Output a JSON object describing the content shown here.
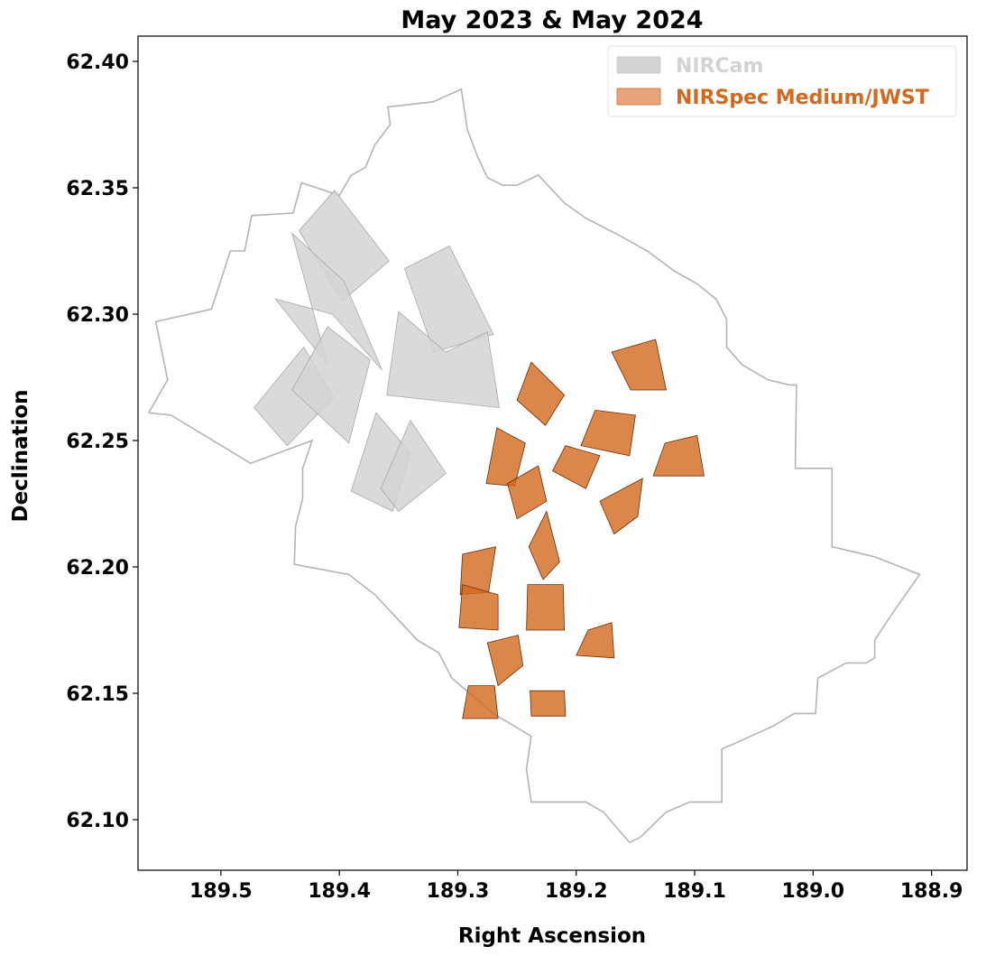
{
  "chart_data": {
    "type": "footprint-map",
    "title": "May 2023 &  May 2024",
    "xlabel": "Right Ascension",
    "ylabel": "Declination",
    "xlim": [
      189.57,
      188.87
    ],
    "ylim": [
      62.08,
      62.41
    ],
    "xaxis_inverted": true,
    "xticks": [
      189.5,
      189.4,
      189.3,
      189.2,
      189.1,
      189.0,
      188.9
    ],
    "xtick_labels": [
      "189.5",
      "189.4",
      "189.3",
      "189.2",
      "189.1",
      "189.0",
      "188.9"
    ],
    "yticks": [
      62.1,
      62.15,
      62.2,
      62.25,
      62.3,
      62.35,
      62.4
    ],
    "ytick_labels": [
      "62.10",
      "62.15",
      "62.20",
      "62.25",
      "62.30",
      "62.35",
      "62.40"
    ],
    "grid": false,
    "legend": {
      "placement": "top-right",
      "entries": [
        {
          "label": "NIRCam",
          "color": "#d3d3d3",
          "text_color": "#d3d3d3"
        },
        {
          "label": "NIRSpec Medium/JWST",
          "color": "#e8a57c",
          "text_color": "#d2691e"
        }
      ]
    },
    "colors": {
      "outline": "#b4b4b4",
      "nircam_fill": "#d3d3d3",
      "nircam_edge": "#a8a8a8",
      "nirspec_fill": "#d2691e",
      "nirspec_edge": "#6b2e05"
    },
    "outline": [
      [
        189.561,
        62.261
      ],
      [
        189.545,
        62.274
      ],
      [
        189.555,
        62.297
      ],
      [
        189.508,
        62.302
      ],
      [
        189.492,
        62.325
      ],
      [
        189.48,
        62.325
      ],
      [
        189.474,
        62.339
      ],
      [
        189.439,
        62.34
      ],
      [
        189.432,
        62.352
      ],
      [
        189.4,
        62.347
      ],
      [
        189.39,
        62.355
      ],
      [
        189.378,
        62.358
      ],
      [
        189.37,
        62.367
      ],
      [
        189.357,
        62.375
      ],
      [
        189.359,
        62.382
      ],
      [
        189.321,
        62.384
      ],
      [
        189.297,
        62.389
      ],
      [
        189.292,
        62.373
      ],
      [
        189.283,
        62.362
      ],
      [
        189.275,
        62.354
      ],
      [
        189.262,
        62.351
      ],
      [
        189.25,
        62.351
      ],
      [
        189.232,
        62.355
      ],
      [
        189.21,
        62.344
      ],
      [
        189.192,
        62.338
      ],
      [
        189.163,
        62.331
      ],
      [
        189.14,
        62.325
      ],
      [
        189.117,
        62.317
      ],
      [
        189.098,
        62.312
      ],
      [
        189.082,
        62.306
      ],
      [
        189.073,
        62.298
      ],
      [
        189.073,
        62.287
      ],
      [
        189.06,
        62.28
      ],
      [
        189.038,
        62.274
      ],
      [
        189.02,
        62.272
      ],
      [
        189.014,
        62.272
      ],
      [
        189.015,
        62.239
      ],
      [
        188.984,
        62.239
      ],
      [
        188.984,
        62.208
      ],
      [
        188.948,
        62.204
      ],
      [
        188.91,
        62.197
      ],
      [
        188.934,
        62.181
      ],
      [
        188.948,
        62.171
      ],
      [
        188.948,
        62.164
      ],
      [
        188.955,
        62.162
      ],
      [
        188.972,
        62.162
      ],
      [
        188.996,
        62.156
      ],
      [
        188.998,
        62.142
      ],
      [
        189.016,
        62.142
      ],
      [
        189.034,
        62.137
      ],
      [
        189.062,
        62.131
      ],
      [
        189.077,
        62.128
      ],
      [
        189.077,
        62.107
      ],
      [
        189.104,
        62.107
      ],
      [
        189.124,
        62.103
      ],
      [
        189.146,
        62.093
      ],
      [
        189.155,
        62.091
      ],
      [
        189.177,
        62.103
      ],
      [
        189.192,
        62.107
      ],
      [
        189.208,
        62.107
      ],
      [
        189.238,
        62.107
      ],
      [
        189.242,
        62.12
      ],
      [
        189.238,
        62.133
      ],
      [
        189.27,
        62.142
      ],
      [
        189.305,
        62.156
      ],
      [
        189.316,
        62.166
      ],
      [
        189.334,
        62.171
      ],
      [
        189.37,
        62.189
      ],
      [
        189.392,
        62.197
      ],
      [
        189.438,
        62.201
      ],
      [
        189.437,
        62.216
      ],
      [
        189.431,
        62.227
      ],
      [
        189.431,
        62.232
      ],
      [
        189.431,
        62.239
      ],
      [
        189.423,
        62.25
      ],
      [
        189.475,
        62.241
      ],
      [
        189.542,
        62.26
      ],
      [
        189.561,
        62.261
      ]
    ],
    "nircam_footprints": [
      [
        [
          189.404,
          62.349
        ],
        [
          189.434,
          62.333
        ],
        [
          189.398,
          62.305
        ],
        [
          189.358,
          62.321
        ]
      ],
      [
        [
          189.44,
          62.332
        ],
        [
          189.396,
          62.313
        ],
        [
          189.364,
          62.278
        ],
        [
          189.406,
          62.3
        ],
        [
          189.454,
          62.306
        ],
        [
          189.41,
          62.28
        ]
      ],
      [
        [
          189.307,
          62.327
        ],
        [
          189.345,
          62.318
        ],
        [
          189.32,
          62.285
        ],
        [
          189.27,
          62.292
        ]
      ],
      [
        [
          189.35,
          62.301
        ],
        [
          189.31,
          62.285
        ],
        [
          189.275,
          62.293
        ],
        [
          189.265,
          62.263
        ],
        [
          189.36,
          62.268
        ]
      ],
      [
        [
          189.43,
          62.287
        ],
        [
          189.472,
          62.263
        ],
        [
          189.444,
          62.248
        ],
        [
          189.405,
          62.267
        ]
      ],
      [
        [
          189.41,
          62.295
        ],
        [
          189.374,
          62.282
        ],
        [
          189.392,
          62.249
        ],
        [
          189.44,
          62.27
        ]
      ],
      [
        [
          189.369,
          62.261
        ],
        [
          189.39,
          62.23
        ],
        [
          189.355,
          62.222
        ],
        [
          189.34,
          62.245
        ]
      ],
      [
        [
          189.34,
          62.258
        ],
        [
          189.365,
          62.231
        ],
        [
          189.35,
          62.222
        ],
        [
          189.31,
          62.237
        ]
      ]
    ],
    "nirspec_footprints": [
      [
        [
          189.238,
          62.281
        ],
        [
          189.25,
          62.266
        ],
        [
          189.226,
          62.256
        ],
        [
          189.21,
          62.268
        ]
      ],
      [
        [
          189.17,
          62.285
        ],
        [
          189.154,
          62.27
        ],
        [
          189.124,
          62.27
        ],
        [
          189.133,
          62.29
        ]
      ],
      [
        [
          189.184,
          62.262
        ],
        [
          189.196,
          62.248
        ],
        [
          189.155,
          62.244
        ],
        [
          189.15,
          62.26
        ]
      ],
      [
        [
          189.267,
          62.255
        ],
        [
          189.276,
          62.233
        ],
        [
          189.252,
          62.232
        ],
        [
          189.243,
          62.249
        ]
      ],
      [
        [
          189.209,
          62.248
        ],
        [
          189.22,
          62.238
        ],
        [
          189.192,
          62.231
        ],
        [
          189.18,
          62.244
        ]
      ],
      [
        [
          189.125,
          62.249
        ],
        [
          189.135,
          62.236
        ],
        [
          189.092,
          62.236
        ],
        [
          189.098,
          62.252
        ]
      ],
      [
        [
          189.258,
          62.233
        ],
        [
          189.25,
          62.219
        ],
        [
          189.225,
          62.226
        ],
        [
          189.232,
          62.24
        ]
      ],
      [
        [
          189.18,
          62.226
        ],
        [
          189.168,
          62.213
        ],
        [
          189.148,
          62.22
        ],
        [
          189.144,
          62.235
        ]
      ],
      [
        [
          189.225,
          62.222
        ],
        [
          189.24,
          62.208
        ],
        [
          189.228,
          62.195
        ],
        [
          189.214,
          62.202
        ]
      ],
      [
        [
          189.296,
          62.205
        ],
        [
          189.298,
          62.189
        ],
        [
          189.274,
          62.19
        ],
        [
          189.268,
          62.208
        ]
      ],
      [
        [
          189.296,
          62.193
        ],
        [
          189.299,
          62.176
        ],
        [
          189.266,
          62.175
        ],
        [
          189.266,
          62.189
        ]
      ],
      [
        [
          189.241,
          62.193
        ],
        [
          189.242,
          62.175
        ],
        [
          189.21,
          62.175
        ],
        [
          189.211,
          62.193
        ]
      ],
      [
        [
          189.19,
          62.175
        ],
        [
          189.2,
          62.165
        ],
        [
          189.168,
          62.164
        ],
        [
          189.17,
          62.178
        ]
      ],
      [
        [
          189.275,
          62.17
        ],
        [
          189.266,
          62.153
        ],
        [
          189.245,
          62.161
        ],
        [
          189.249,
          62.173
        ]
      ],
      [
        [
          189.291,
          62.153
        ],
        [
          189.296,
          62.14
        ],
        [
          189.266,
          62.14
        ],
        [
          189.269,
          62.153
        ]
      ],
      [
        [
          189.239,
          62.151
        ],
        [
          189.238,
          62.141
        ],
        [
          189.209,
          62.141
        ],
        [
          189.21,
          62.151
        ]
      ]
    ]
  }
}
